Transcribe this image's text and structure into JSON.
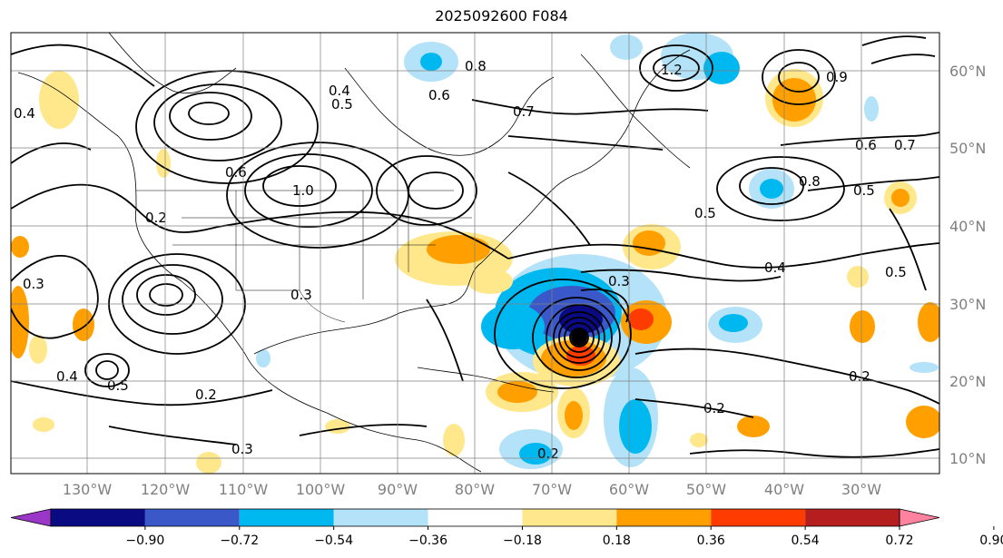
{
  "title": "2025092600 F084",
  "lat_ticks": [
    "60°N",
    "50°N",
    "40°N",
    "30°N",
    "20°N",
    "10°N"
  ],
  "lon_ticks": [
    "130°W",
    "120°W",
    "110°W",
    "100°W",
    "90°W",
    "80°W",
    "70°W",
    "60°W",
    "50°W",
    "40°W",
    "30°W"
  ],
  "colorbar": {
    "labels": [
      "−0.90",
      "−0.72",
      "−0.54",
      "−0.36",
      "−0.18",
      "0.18",
      "0.36",
      "0.54",
      "0.72",
      "0.90"
    ],
    "colors": [
      "#9a36c8",
      "#0a0a82",
      "#3a58c8",
      "#00b8f0",
      "#b4e2f8",
      "#ffffff",
      "#ffe88c",
      "#ffa000",
      "#ff3c00",
      "#b41e1e",
      "#ff82a0"
    ]
  },
  "contour_labels": [
    "0.8",
    "0.7",
    "0.6",
    "0.5",
    "0.4",
    "0.3",
    "0.2",
    "1.0",
    "1.2",
    "0.9",
    "0.6",
    "0.6",
    "0.4",
    "0.3",
    "0.2",
    "0.5",
    "0.7",
    "0.8",
    "0.4",
    "0.5",
    "0.2",
    "0.3",
    "0.3",
    "0.2",
    "0.4",
    "0.5",
    "0.2",
    "0.5"
  ]
}
